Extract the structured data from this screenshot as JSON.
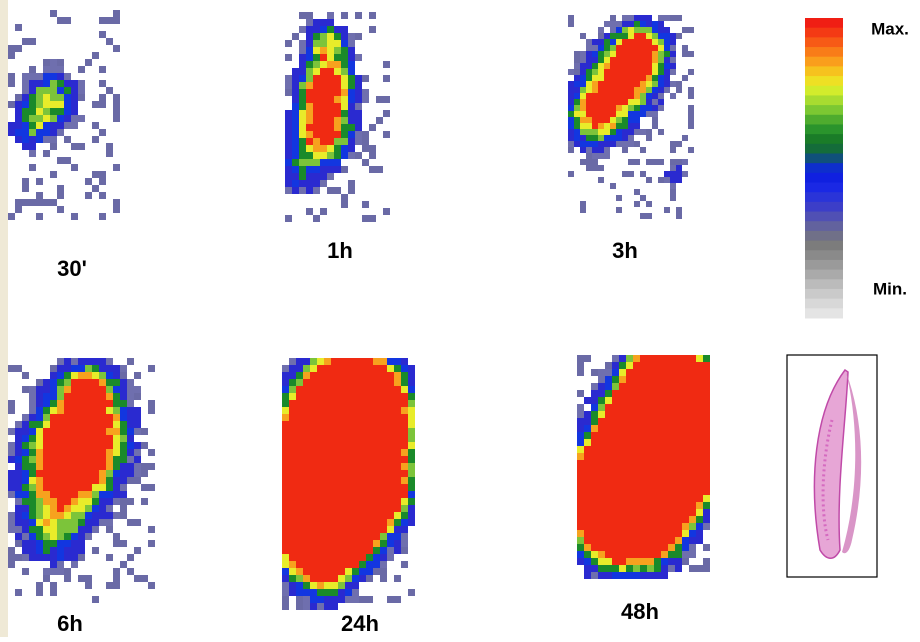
{
  "panels": [
    {
      "label": "30'"
    },
    {
      "label": "1h"
    },
    {
      "label": "3h"
    },
    {
      "label": "6h"
    },
    {
      "label": "24h"
    },
    {
      "label": "48h"
    }
  ],
  "colorbar": {
    "max_label": "Max.",
    "min_label": "Min."
  }
}
